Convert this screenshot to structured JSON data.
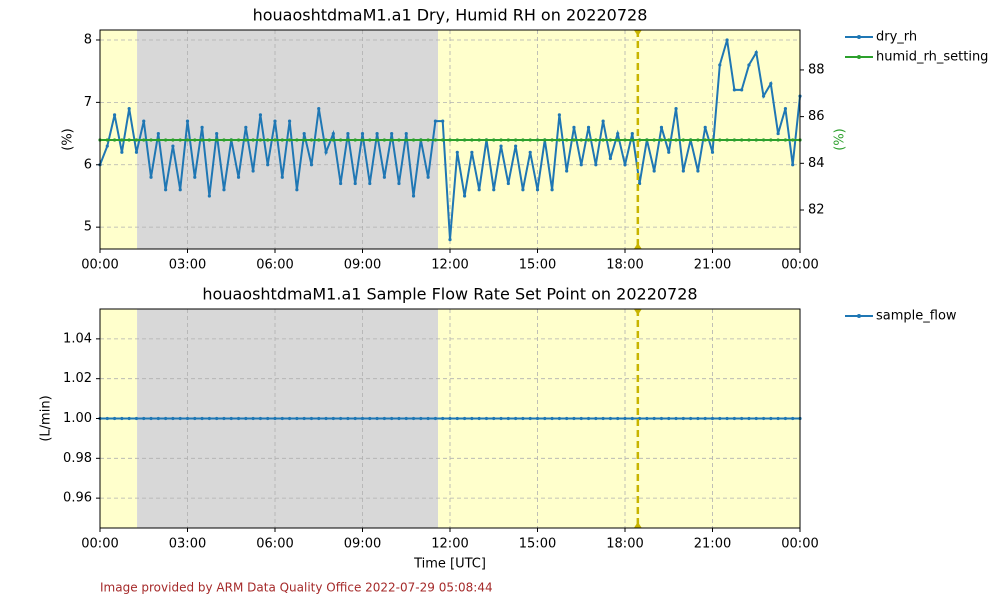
{
  "chart_data": [
    {
      "type": "line",
      "title": "houaoshtdmaM1.a1 Dry, Humid RH on 20220728",
      "ylabel": "(%)",
      "y2label": "(%)",
      "y2label_color": "#2ca02c",
      "x": [
        0,
        0.25,
        0.5,
        0.75,
        1,
        1.25,
        1.5,
        1.75,
        2,
        2.25,
        2.5,
        2.75,
        3,
        3.25,
        3.5,
        3.75,
        4,
        4.25,
        4.5,
        4.75,
        5,
        5.25,
        5.5,
        5.75,
        6,
        6.25,
        6.5,
        6.75,
        7,
        7.25,
        7.5,
        7.75,
        8,
        8.25,
        8.5,
        8.75,
        9,
        9.25,
        9.5,
        9.75,
        10,
        10.25,
        10.5,
        10.75,
        11,
        11.25,
        11.5,
        11.75,
        12,
        12.25,
        12.5,
        12.75,
        13,
        13.25,
        13.5,
        13.75,
        14,
        14.25,
        14.5,
        14.75,
        15,
        15.25,
        15.5,
        15.75,
        16,
        16.25,
        16.5,
        16.75,
        17,
        17.25,
        17.5,
        17.75,
        18,
        18.25,
        18.5,
        18.75,
        19,
        19.25,
        19.5,
        19.75,
        20,
        20.25,
        20.5,
        20.75,
        21,
        21.25,
        21.5,
        21.75,
        22,
        22.25,
        22.5,
        22.75,
        23,
        23.25,
        23.5,
        23.75,
        24
      ],
      "series": [
        {
          "name": "dry_rh",
          "color": "#1f77b4",
          "values": [
            6.0,
            6.3,
            6.8,
            6.2,
            6.9,
            6.2,
            6.7,
            5.8,
            6.5,
            5.6,
            6.3,
            5.6,
            6.7,
            5.8,
            6.6,
            5.5,
            6.5,
            5.6,
            6.4,
            5.8,
            6.6,
            5.9,
            6.8,
            6.0,
            6.7,
            5.8,
            6.7,
            5.6,
            6.5,
            6.0,
            6.9,
            6.2,
            6.5,
            5.7,
            6.5,
            5.7,
            6.5,
            5.7,
            6.5,
            5.8,
            6.5,
            5.7,
            6.5,
            5.5,
            6.4,
            5.8,
            6.7,
            6.7,
            4.8,
            6.2,
            5.5,
            6.2,
            5.6,
            6.4,
            5.6,
            6.3,
            5.7,
            6.3,
            5.6,
            6.2,
            5.6,
            6.4,
            5.6,
            6.8,
            5.9,
            6.6,
            6.0,
            6.6,
            6.0,
            6.7,
            6.1,
            6.5,
            6.0,
            6.5,
            5.7,
            6.4,
            5.9,
            6.6,
            6.2,
            6.9,
            5.9,
            6.4,
            5.9,
            6.6,
            6.2,
            7.6,
            8.0,
            7.2,
            7.2,
            7.6,
            7.8,
            7.1,
            7.3,
            6.5,
            6.9,
            6.0,
            7.1
          ]
        },
        {
          "name": "humid_rh_setting",
          "color": "#2ca02c",
          "axis": "y2",
          "values": [
            85,
            85,
            85,
            85,
            85,
            85,
            85,
            85,
            85,
            85,
            85,
            85,
            85,
            85,
            85,
            85,
            85,
            85,
            85,
            85,
            85,
            85,
            85,
            85,
            85,
            85,
            85,
            85,
            85,
            85,
            85,
            85,
            85,
            85,
            85,
            85,
            85,
            85,
            85,
            85,
            85,
            85,
            85,
            85,
            85,
            85,
            85,
            85,
            85,
            85,
            85,
            85,
            85,
            85,
            85,
            85,
            85,
            85,
            85,
            85,
            85,
            85,
            85,
            85,
            85,
            85,
            85,
            85,
            85,
            85,
            85,
            85,
            85,
            85,
            85,
            85,
            85,
            85,
            85,
            85,
            85,
            85,
            85,
            85,
            85,
            85,
            85,
            85,
            85,
            85,
            85,
            85,
            85,
            85,
            85,
            85,
            85
          ]
        }
      ],
      "xlim": [
        0,
        24
      ],
      "xticks": [
        {
          "value": 0,
          "label": "00:00"
        },
        {
          "value": 3,
          "label": "03:00"
        },
        {
          "value": 6,
          "label": "06:00"
        },
        {
          "value": 9,
          "label": "09:00"
        },
        {
          "value": 12,
          "label": "12:00"
        },
        {
          "value": 15,
          "label": "15:00"
        },
        {
          "value": 18,
          "label": "18:00"
        },
        {
          "value": 21,
          "label": "21:00"
        },
        {
          "value": 24,
          "label": "00:00"
        }
      ],
      "ylim": [
        4.65,
        8.16
      ],
      "yticks": [
        5,
        6,
        7,
        8
      ],
      "y2lim": [
        80.33,
        89.71
      ],
      "y2ticks": [
        82,
        84,
        86,
        88
      ],
      "grid": true,
      "shading": [
        {
          "x": [
            0,
            1.27
          ],
          "color": "#ffffcc"
        },
        {
          "x": [
            1.27,
            11.59
          ],
          "color": "#d8d8d8"
        },
        {
          "x": [
            11.59,
            24
          ],
          "color": "#ffffcc"
        }
      ],
      "vline": {
        "x": 18.44,
        "color": "#c8b400"
      }
    },
    {
      "type": "line",
      "title": "houaoshtdmaM1.a1 Sample Flow Rate Set Point on 20220728",
      "ylabel": "(L/min)",
      "xlabel": "Time [UTC]",
      "x": [
        0,
        0.25,
        0.5,
        0.75,
        1,
        1.25,
        1.5,
        1.75,
        2,
        2.25,
        2.5,
        2.75,
        3,
        3.25,
        3.5,
        3.75,
        4,
        4.25,
        4.5,
        4.75,
        5,
        5.25,
        5.5,
        5.75,
        6,
        6.25,
        6.5,
        6.75,
        7,
        7.25,
        7.5,
        7.75,
        8,
        8.25,
        8.5,
        8.75,
        9,
        9.25,
        9.5,
        9.75,
        10,
        10.25,
        10.5,
        10.75,
        11,
        11.25,
        11.5,
        11.75,
        12,
        12.25,
        12.5,
        12.75,
        13,
        13.25,
        13.5,
        13.75,
        14,
        14.25,
        14.5,
        14.75,
        15,
        15.25,
        15.5,
        15.75,
        16,
        16.25,
        16.5,
        16.75,
        17,
        17.25,
        17.5,
        17.75,
        18,
        18.25,
        18.5,
        18.75,
        19,
        19.25,
        19.5,
        19.75,
        20,
        20.25,
        20.5,
        20.75,
        21,
        21.25,
        21.5,
        21.75,
        22,
        22.25,
        22.5,
        22.75,
        23,
        23.25,
        23.5,
        23.75,
        24
      ],
      "series": [
        {
          "name": "sample_flow",
          "color": "#1f77b4",
          "values": [
            1,
            1,
            1,
            1,
            1,
            1,
            1,
            1,
            1,
            1,
            1,
            1,
            1,
            1,
            1,
            1,
            1,
            1,
            1,
            1,
            1,
            1,
            1,
            1,
            1,
            1,
            1,
            1,
            1,
            1,
            1,
            1,
            1,
            1,
            1,
            1,
            1,
            1,
            1,
            1,
            1,
            1,
            1,
            1,
            1,
            1,
            1,
            1,
            1,
            1,
            1,
            1,
            1,
            1,
            1,
            1,
            1,
            1,
            1,
            1,
            1,
            1,
            1,
            1,
            1,
            1,
            1,
            1,
            1,
            1,
            1,
            1,
            1,
            1,
            1,
            1,
            1,
            1,
            1,
            1,
            1,
            1,
            1,
            1,
            1,
            1,
            1,
            1,
            1,
            1,
            1,
            1,
            1,
            1,
            1,
            1,
            1
          ]
        }
      ],
      "xlim": [
        0,
        24
      ],
      "xticks": [
        {
          "value": 0,
          "label": "00:00"
        },
        {
          "value": 3,
          "label": "03:00"
        },
        {
          "value": 6,
          "label": "06:00"
        },
        {
          "value": 9,
          "label": "09:00"
        },
        {
          "value": 12,
          "label": "12:00"
        },
        {
          "value": 15,
          "label": "15:00"
        },
        {
          "value": 18,
          "label": "18:00"
        },
        {
          "value": 21,
          "label": "21:00"
        },
        {
          "value": 24,
          "label": "00:00"
        }
      ],
      "ylim": [
        0.945,
        1.055
      ],
      "yticks": [
        0.96,
        0.98,
        {
          "value": 1,
          "label": "1.00"
        },
        1.02,
        1.04
      ],
      "grid": true,
      "shading": [
        {
          "x": [
            0,
            1.27
          ],
          "color": "#ffffcc"
        },
        {
          "x": [
            1.27,
            11.59
          ],
          "color": "#d8d8d8"
        },
        {
          "x": [
            11.59,
            24
          ],
          "color": "#ffffcc"
        }
      ],
      "vline": {
        "x": 18.44,
        "color": "#c8b400"
      }
    }
  ],
  "footer": "Image provided by ARM Data Quality Office 2022-07-29 05:08:44"
}
